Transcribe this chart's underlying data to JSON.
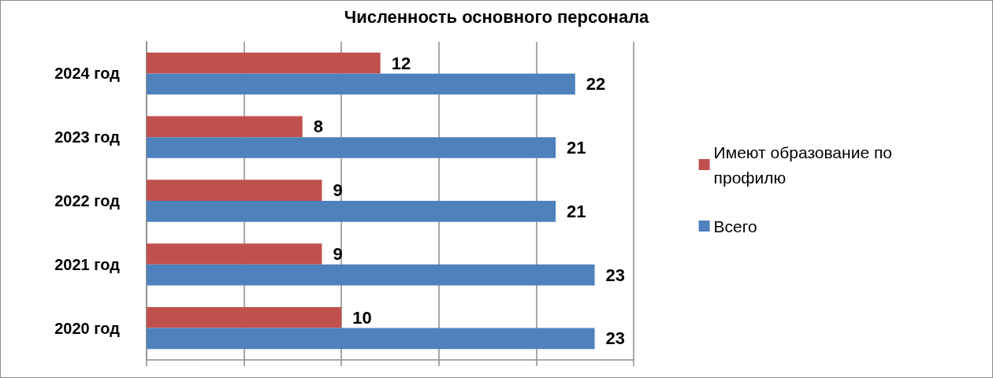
{
  "chart_data": {
    "type": "bar",
    "orientation": "horizontal",
    "title": "Численность основного персонала",
    "categories": [
      "2024 год",
      "2023 год",
      "2022 год",
      "2021 год",
      "2020 год"
    ],
    "series": [
      {
        "name": "Имеют образование по профилю",
        "color": "#c0504d",
        "values": [
          12,
          8,
          9,
          9,
          10
        ]
      },
      {
        "name": "Всего",
        "color": "#4f81bd",
        "values": [
          22,
          21,
          21,
          23,
          23
        ]
      }
    ],
    "xlim": [
      0,
      25
    ],
    "xticks": [
      {
        "value": 0,
        "label": null
      },
      {
        "value": 5,
        "label": null
      },
      {
        "value": 10,
        "label": null
      },
      {
        "value": 15,
        "label": null
      },
      {
        "value": 20,
        "label": null
      },
      {
        "value": 25,
        "label": null
      }
    ],
    "tick_labels": "y",
    "grid": "x",
    "legend": "right",
    "data_labels": true
  }
}
